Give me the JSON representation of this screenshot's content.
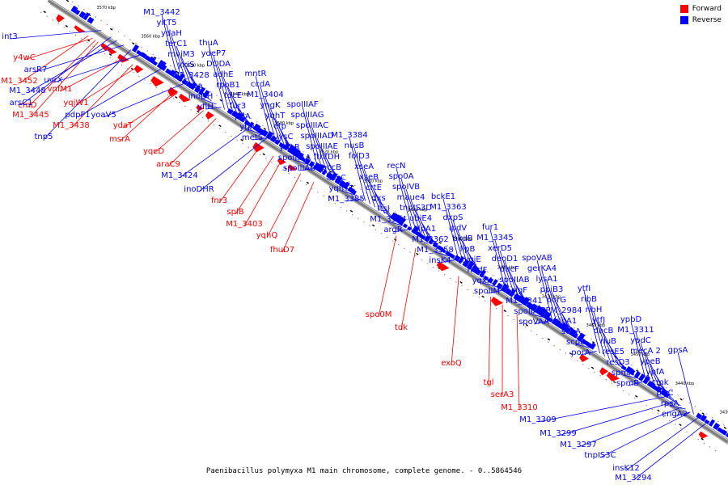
{
  "legend": {
    "forward_label": "Forward",
    "reverse_label": "Reverse",
    "forward_color": "#ff0000",
    "reverse_color": "#0000ff"
  },
  "caption": "Paenibacillus polymyxa M1 main chromosome, complete genome. - 0..5864546",
  "ticks": [
    "3570 kbp",
    "3560 kbp",
    "3550 kbp",
    "3540 kbp",
    "3530 kbp",
    "3520 kbp",
    "3510 kbp",
    "3500 kbp",
    "3490 kbp",
    "3480 kbp",
    "3470 kbp",
    "3460 kbp",
    "3450 kbp",
    "3440 kbp",
    "3430 kbp",
    "3420 kbp"
  ],
  "forward_genes": [
    "y4wC",
    "M1_3452",
    "cmD",
    "vnfM1",
    "M1_3445",
    "yqjW1",
    "M1_3438",
    "ydaT",
    "msrA",
    "yqeD",
    "araC9",
    "fnr3",
    "splB",
    "M1_3403",
    "yqhQ",
    "fhuD7",
    "spo0M",
    "tdk",
    "exoQ",
    "tgl",
    "serA3",
    "M1_3310"
  ],
  "reverse_genes_left": [
    "int3",
    "arsR7",
    "M1_3448",
    "uvrX",
    "arsC1",
    "pdpF1",
    "yoaV5",
    "tnp5",
    "M1_3424",
    "inoDHR"
  ],
  "reverse_genes_right": [
    "M1_3442",
    "yitT5",
    "ydaH",
    "terC1",
    "mviM3",
    "yxiS",
    "M1_3428",
    "xsa",
    "inoDH",
    "yfiH",
    "thuA",
    "ydeP7",
    "DODA",
    "adhE",
    "rpoB1",
    "tdcE",
    "fur3",
    "pflA",
    "ytjA",
    "metS",
    "mntR",
    "ccdA",
    "M1_3404",
    "yngK",
    "yqhT",
    "efp",
    "lysC",
    "yqhR",
    "spoIIIAA",
    "spoIIIAB",
    "spoIIIAF",
    "spoIIIAG",
    "spoIIIAC",
    "spoIIIAD",
    "spoIIIAE",
    "fthfDH",
    "accB",
    "accC",
    "yqhY1",
    "M1_3385",
    "M1_3384",
    "nusB",
    "folD3",
    "xseA",
    "xseB",
    "crtE",
    "dxs",
    "ftsJ",
    "M1_3374",
    "argR",
    "recN",
    "spo0A",
    "spoIVB",
    "maue4",
    "tnpIS3D",
    "ubiE4",
    "tlpA1",
    "M1_3362",
    "M1_3358",
    "insK4",
    "bckE1",
    "M1_3363",
    "dxpS",
    "lpdV",
    "bkdB",
    "lipB",
    "yqjE",
    "nudF",
    "yqxK",
    "spoIIM",
    "fur1",
    "M1_3345",
    "xerD5",
    "deoD1",
    "dacF",
    "spoIIAB",
    "sigF",
    "M1_3341",
    "spoIIAA",
    "spoVAA",
    "spoVAB",
    "gerKA4",
    "lysA1",
    "ppiB3",
    "porG",
    "PPM_2984",
    "ribA1",
    "scpA",
    "scpB",
    "porA",
    "ytfI",
    "ribB",
    "ribH",
    "ytfJ",
    "dacB",
    "rluB",
    "resE5",
    "resD3",
    "spmA",
    "spmB",
    "ypbD",
    "M1_3311",
    "ypdC",
    "mecA 2",
    "ypeB",
    "ypfA",
    "cmk",
    "plsC",
    "rpsA",
    "engA2",
    "gpsA"
  ],
  "reverse_genes_bottom": [
    "M1_3309",
    "M1_3299",
    "M1_3297",
    "tnpIS3C",
    "insK12",
    "M1_3294"
  ]
}
